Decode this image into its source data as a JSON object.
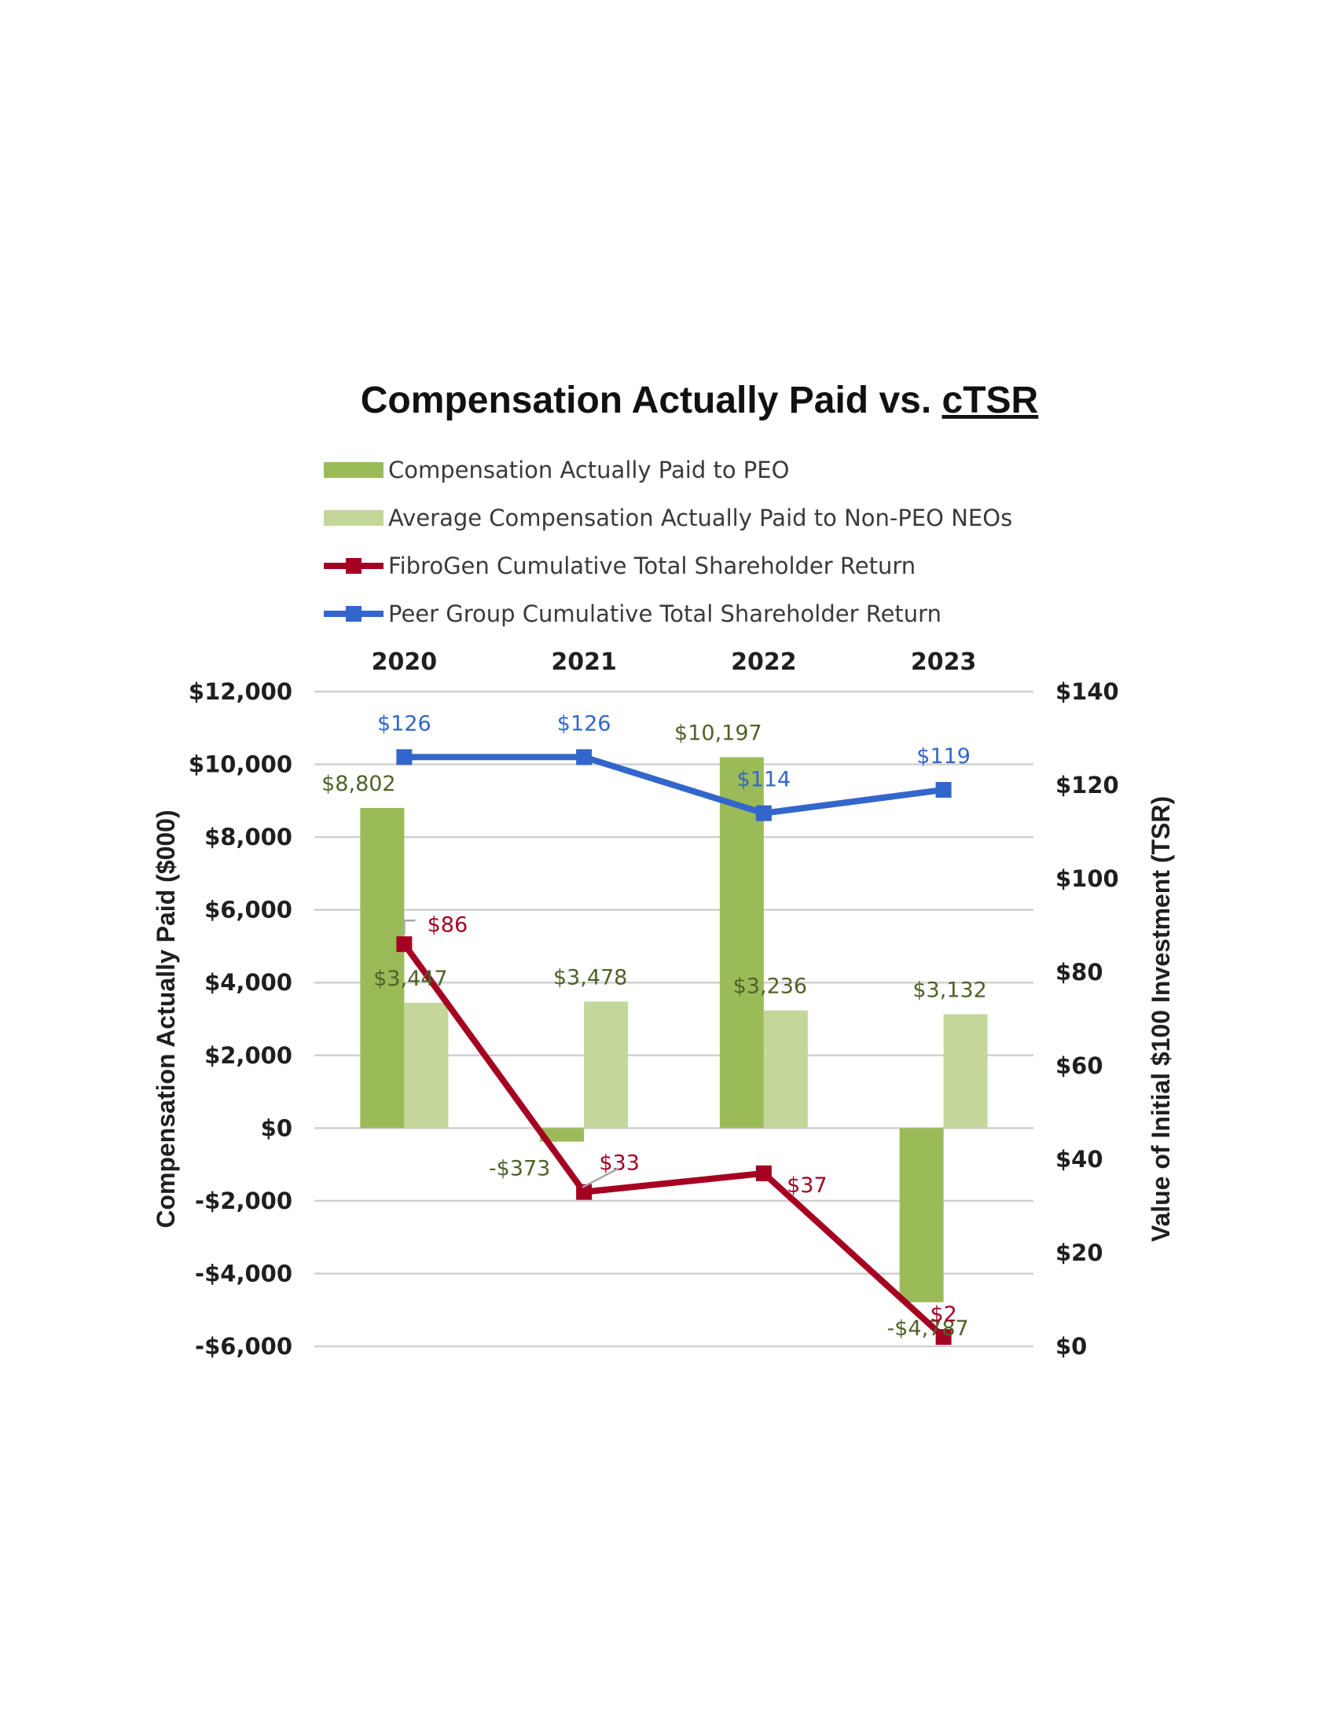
{
  "chart_data": {
    "type": "bar",
    "title": "Compensation Actually Paid vs.",
    "title_underlined": "cTSR",
    "categories": [
      "2020",
      "2021",
      "2022",
      "2023"
    ],
    "left_axis": {
      "label": "Compensation Actually Paid ($000)",
      "ylim": [
        -6000,
        12000
      ],
      "ticks": [
        12000,
        10000,
        8000,
        6000,
        4000,
        2000,
        0,
        -2000,
        -4000,
        -6000
      ],
      "tick_labels": [
        "$12,000",
        "$10,000",
        "$8,000",
        "$6,000",
        "$4,000",
        "$2,000",
        "$0",
        "-$2,000",
        "-$4,000",
        "-$6,000"
      ]
    },
    "right_axis": {
      "label": "Value of Initial $100 Investment (TSR)",
      "ylim": [
        0,
        140
      ],
      "ticks": [
        140,
        120,
        100,
        80,
        60,
        40,
        20,
        0
      ],
      "tick_labels": [
        "$140",
        "$120",
        "$100",
        "$80",
        "$60",
        "$40",
        "$20",
        "$0"
      ]
    },
    "series": [
      {
        "name": "Compensation Actually Paid to PEO",
        "kind": "bar",
        "axis": "left",
        "color": "#9bbb59",
        "values": [
          8802,
          -373,
          10197,
          -4787
        ],
        "labels": [
          "$8,802",
          "-$373",
          "$10,197",
          "-$4,787"
        ],
        "label_color": "#4f6228"
      },
      {
        "name": "Average Compensation Actually Paid to Non-PEO NEOs",
        "kind": "bar",
        "axis": "left",
        "color": "#c4d79b",
        "values": [
          3447,
          3478,
          3236,
          3132
        ],
        "labels": [
          "$3,447",
          "$3,478",
          "$3,236",
          "$3,132"
        ],
        "label_color": "#4f6228"
      },
      {
        "name": "FibroGen Cumulative Total Shareholder Return",
        "kind": "line",
        "axis": "right",
        "color": "#a50021",
        "values": [
          86,
          33,
          37,
          2
        ],
        "labels": [
          "$86",
          "$33",
          "$37",
          "$2"
        ],
        "label_color": "#a50021"
      },
      {
        "name": "Peer Group Cumulative Total Shareholder Return",
        "kind": "line",
        "axis": "right",
        "color": "#3366cc",
        "values": [
          126,
          126,
          114,
          119
        ],
        "labels": [
          "$126",
          "$126",
          "$114",
          "$119"
        ],
        "label_color": "#3366cc"
      }
    ],
    "grid": true,
    "legend_position": "top",
    "category_labels_position": "top"
  }
}
